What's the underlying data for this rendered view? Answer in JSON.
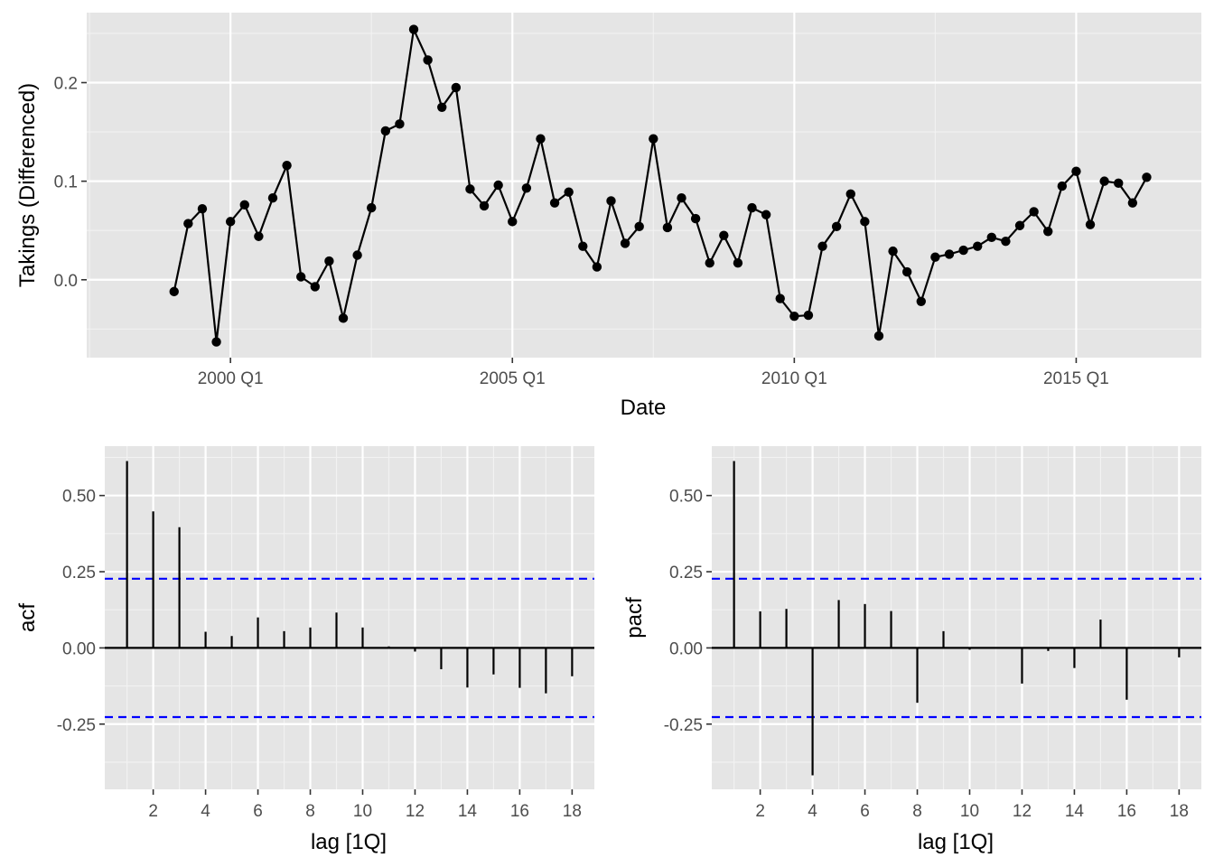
{
  "colors": {
    "panel_background": "#e5e5e5",
    "grid_major": "#ffffff",
    "grid_minor": "#f2f2f2",
    "series_line": "#000000",
    "confidence_band": "#0000ff",
    "tick_text": "#4d4d4d"
  },
  "chart_data": [
    {
      "type": "line",
      "title": "",
      "xlabel": "Date",
      "ylabel": "Takings (Differenced)",
      "x_ticks": [
        "2000 Q1",
        "2005 Q1",
        "2010 Q1",
        "2015 Q1"
      ],
      "x_tick_positions": [
        2000.0,
        2005.0,
        2010.0,
        2015.0
      ],
      "y_ticks": [
        "0.0",
        "0.1",
        "0.2"
      ],
      "y_tick_values": [
        0.0,
        0.1,
        0.2
      ],
      "xlim": [
        1997.45,
        2017.22
      ],
      "ylim": [
        -0.079,
        0.271
      ],
      "grid": true,
      "points": true,
      "start_quarter": "1999 Q1",
      "values": [
        -0.012,
        0.057,
        0.072,
        -0.063,
        0.059,
        0.076,
        0.044,
        0.083,
        0.116,
        0.003,
        -0.007,
        0.019,
        -0.039,
        0.025,
        0.073,
        0.151,
        0.158,
        0.254,
        0.223,
        0.175,
        0.195,
        0.092,
        0.075,
        0.096,
        0.059,
        0.093,
        0.143,
        0.078,
        0.089,
        0.034,
        0.013,
        0.08,
        0.037,
        0.054,
        0.143,
        0.053,
        0.083,
        0.062,
        0.017,
        0.045,
        0.017,
        0.073,
        0.066,
        -0.019,
        -0.037,
        -0.036,
        0.034,
        0.054,
        0.087,
        0.059,
        -0.057,
        0.029,
        0.008,
        -0.022,
        0.023,
        0.026,
        0.03,
        0.034,
        0.043,
        0.039,
        0.055,
        0.069,
        0.049,
        0.095,
        0.11,
        0.056,
        0.1,
        0.098,
        0.078,
        0.104
      ]
    },
    {
      "type": "bar",
      "title": "",
      "xlabel": "lag [1Q]",
      "ylabel": "acf",
      "x": [
        1,
        2,
        3,
        4,
        5,
        6,
        7,
        8,
        9,
        10,
        11,
        12,
        13,
        14,
        15,
        16,
        17,
        18
      ],
      "values": [
        0.613,
        0.448,
        0.396,
        0.053,
        0.039,
        0.1,
        0.055,
        0.067,
        0.116,
        0.067,
        0.005,
        -0.012,
        -0.07,
        -0.13,
        -0.087,
        -0.131,
        -0.149,
        -0.093
      ],
      "x_ticks": [
        "2",
        "4",
        "6",
        "8",
        "10",
        "12",
        "14",
        "16",
        "18"
      ],
      "x_tick_values": [
        2,
        4,
        6,
        8,
        10,
        12,
        14,
        16,
        18
      ],
      "y_ticks": [
        "-0.25",
        "0.00",
        "0.25",
        "0.50"
      ],
      "y_tick_values": [
        -0.25,
        0.0,
        0.25,
        0.5
      ],
      "xlim": [
        0.15,
        18.85
      ],
      "ylim": [
        -0.464,
        0.662
      ],
      "confidence_bounds": [
        0.227,
        -0.227
      ],
      "grid": true
    },
    {
      "type": "bar",
      "title": "",
      "xlabel": "lag [1Q]",
      "ylabel": "pacf",
      "x": [
        1,
        2,
        3,
        4,
        5,
        6,
        7,
        8,
        9,
        10,
        11,
        12,
        13,
        14,
        15,
        16,
        17,
        18
      ],
      "values": [
        0.613,
        0.12,
        0.128,
        -0.418,
        0.157,
        0.144,
        0.121,
        -0.18,
        0.055,
        -0.006,
        -0.001,
        -0.117,
        -0.01,
        -0.066,
        0.093,
        -0.17,
        0.0,
        -0.031
      ],
      "x_ticks": [
        "2",
        "4",
        "6",
        "8",
        "10",
        "12",
        "14",
        "16",
        "18"
      ],
      "x_tick_values": [
        2,
        4,
        6,
        8,
        10,
        12,
        14,
        16,
        18
      ],
      "y_ticks": [
        "-0.25",
        "0.00",
        "0.25",
        "0.50"
      ],
      "y_tick_values": [
        -0.25,
        0.0,
        0.25,
        0.5
      ],
      "xlim": [
        0.15,
        18.85
      ],
      "ylim": [
        -0.464,
        0.662
      ],
      "confidence_bounds": [
        0.227,
        -0.227
      ],
      "grid": true
    }
  ]
}
